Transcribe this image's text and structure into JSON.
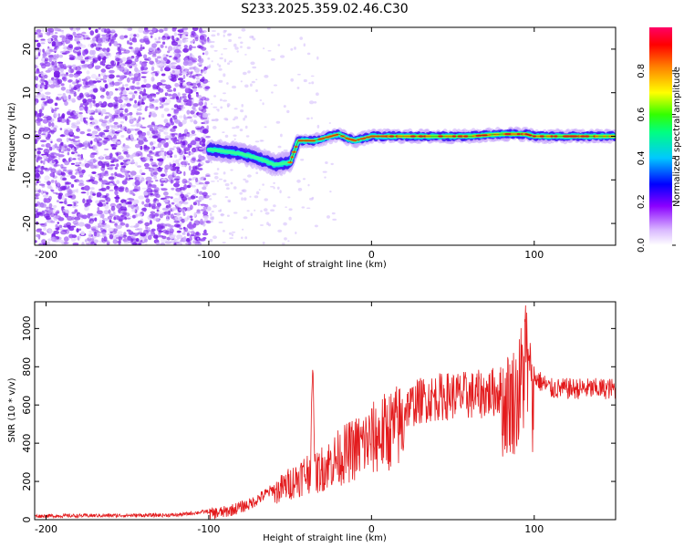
{
  "title": "S233.2025.359.02.46.C30",
  "colors": {
    "line": "#e31a1c",
    "frame": "#000000",
    "scatter_noise": "#8b3cf0",
    "scatter_core": "#33ff66",
    "scatter_center": "#ff2a2a"
  },
  "chart_data": [
    {
      "type": "scatter",
      "title": "S233.2025.359.02.46.C30",
      "xlabel": "Height of straight line (km)",
      "ylabel": "Frequency (Hz)",
      "xlim": [
        -207,
        150
      ],
      "ylim": [
        -25,
        25
      ],
      "xticks": [
        -200,
        -100,
        0,
        100
      ],
      "yticks": [
        -20,
        -10,
        0,
        10,
        20
      ],
      "ridge": {
        "x": [
          -100,
          -90,
          -80,
          -70,
          -60,
          -50,
          -45,
          -40,
          -35,
          -30,
          -25,
          -20,
          -15,
          -10,
          -5,
          0,
          10,
          20,
          40,
          60,
          80,
          90,
          95,
          100,
          120,
          150
        ],
        "y": [
          -3,
          -3.5,
          -4,
          -5,
          -6.5,
          -6,
          -1,
          -1,
          -1,
          -0.5,
          0,
          0.5,
          -0.5,
          -1,
          -0.5,
          0,
          0,
          0,
          0,
          0,
          0.5,
          0.5,
          0.5,
          0,
          0,
          0
        ]
      },
      "colorbar": {
        "label": "Normalized spectral amplitude",
        "range": [
          0,
          1
        ],
        "ticks": [
          "0.0",
          "0.2",
          "0.4",
          "0.6",
          "0.8"
        ]
      }
    },
    {
      "type": "line",
      "xlabel": "Height of straight line (km)",
      "ylabel": "SNR (10 * v/v)",
      "xlim": [
        -207,
        150
      ],
      "ylim": [
        0,
        1140
      ],
      "xticks": [
        -200,
        -100,
        0,
        100
      ],
      "yticks": [
        0,
        200,
        400,
        600,
        800,
        1000
      ],
      "series": [
        {
          "name": "SNR",
          "envelope_x": [
            -207,
            -120,
            -90,
            -75,
            -60,
            -45,
            -38,
            -36,
            -35,
            -30,
            -20,
            -10,
            0,
            10,
            20,
            30,
            40,
            50,
            60,
            70,
            80,
            85,
            90,
            95,
            97,
            100,
            110,
            150
          ],
          "envelope_y": [
            25,
            30,
            60,
            100,
            180,
            280,
            330,
            820,
            300,
            350,
            420,
            480,
            540,
            600,
            650,
            700,
            720,
            730,
            730,
            740,
            760,
            800,
            820,
            1100,
            980,
            780,
            720,
            720
          ]
        }
      ]
    }
  ]
}
